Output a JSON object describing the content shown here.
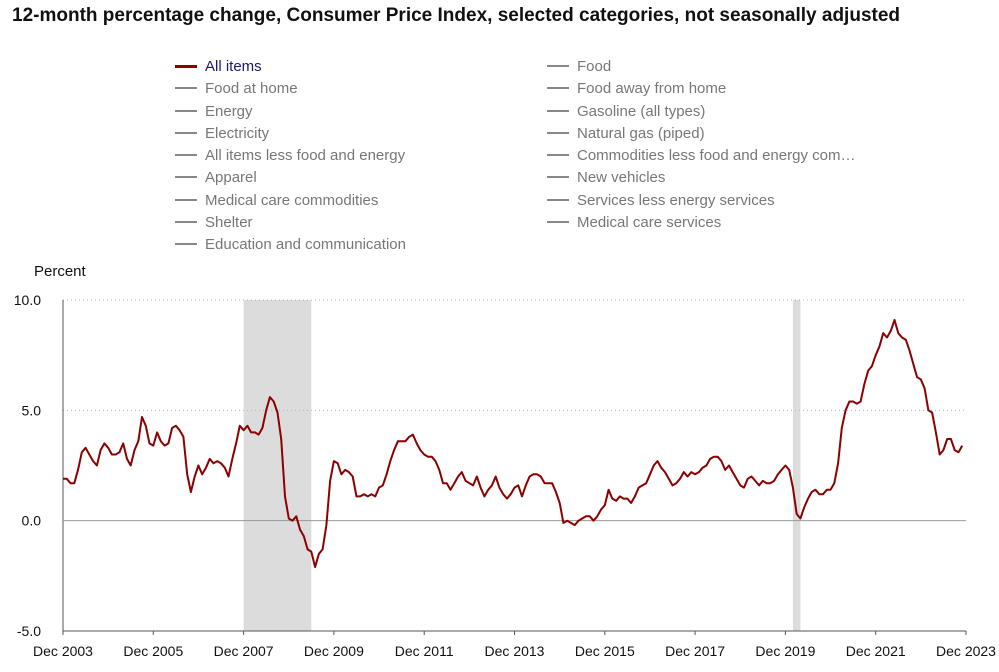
{
  "title": "12-month percentage change, Consumer Price Index, selected categories, not seasonally adjusted",
  "legend": {
    "left": [
      "All items",
      "Food at home",
      "Energy",
      "Electricity",
      "All items less food and energy",
      "Apparel",
      "Medical care commodities",
      "Shelter",
      "Education and communication"
    ],
    "right": [
      "Food",
      "Food away from home",
      "Gasoline (all types)",
      "Natural gas (piped)",
      "Commodities less food and energy com…",
      "New vehicles",
      "Services less energy services",
      "Medical care services"
    ]
  },
  "colors": {
    "all_items": "#8b0000",
    "inactive": "#888888",
    "recession": "#dcdcdc",
    "grid": "#b0b0c8"
  },
  "chart_data": {
    "type": "line",
    "title": "12-month percentage change, Consumer Price Index, selected categories, not seasonally adjusted",
    "ylabel": "Percent",
    "xlabel": "",
    "ylim": [
      -5.0,
      10.0
    ],
    "yticks": [
      "10.0",
      "5.0",
      "0.0",
      "-5.0"
    ],
    "ytick_values": [
      10,
      5,
      0,
      -5
    ],
    "xticks": [
      "Dec 2003",
      "Dec 2005",
      "Dec 2007",
      "Dec 2009",
      "Dec 2011",
      "Dec 2013",
      "Dec 2015",
      "Dec 2017",
      "Dec 2019",
      "Dec 2021",
      "Dec 2023"
    ],
    "xrange": [
      "2003-12",
      "2023-12"
    ],
    "grid": "horizontal dotted at 5.0 and 10.0",
    "recessions": [
      [
        "2007-12",
        "2009-06"
      ],
      [
        "2020-02",
        "2020-04"
      ]
    ],
    "series": [
      {
        "name": "All items",
        "start": "2003-12",
        "values": [
          1.9,
          1.9,
          1.7,
          1.7,
          2.3,
          3.1,
          3.3,
          3.0,
          2.7,
          2.5,
          3.2,
          3.5,
          3.3,
          3.0,
          3.0,
          3.1,
          3.5,
          2.8,
          2.5,
          3.2,
          3.6,
          4.7,
          4.3,
          3.5,
          3.4,
          4.0,
          3.6,
          3.4,
          3.5,
          4.2,
          4.3,
          4.1,
          3.8,
          2.1,
          1.3,
          2.0,
          2.5,
          2.1,
          2.4,
          2.8,
          2.6,
          2.7,
          2.6,
          2.4,
          2.0,
          2.8,
          3.5,
          4.3,
          4.1,
          4.3,
          4.0,
          4.0,
          3.9,
          4.2,
          5.0,
          5.6,
          5.4,
          4.9,
          3.7,
          1.1,
          0.1,
          0.0,
          0.2,
          -0.4,
          -0.7,
          -1.3,
          -1.4,
          -2.1,
          -1.5,
          -1.3,
          -0.2,
          1.8,
          2.7,
          2.6,
          2.1,
          2.3,
          2.2,
          2.0,
          1.1,
          1.1,
          1.2,
          1.1,
          1.2,
          1.1,
          1.5,
          1.6,
          2.1,
          2.7,
          3.2,
          3.6,
          3.6,
          3.6,
          3.8,
          3.9,
          3.5,
          3.2,
          3.0,
          2.9,
          2.9,
          2.7,
          2.3,
          1.7,
          1.7,
          1.4,
          1.7,
          2.0,
          2.2,
          1.8,
          1.7,
          1.6,
          2.0,
          1.5,
          1.1,
          1.4,
          1.6,
          2.0,
          1.5,
          1.2,
          1.0,
          1.2,
          1.5,
          1.6,
          1.1,
          1.6,
          2.0,
          2.1,
          2.1,
          2.0,
          1.7,
          1.7,
          1.7,
          1.3,
          0.8,
          -0.1,
          0.0,
          -0.1,
          -0.2,
          0.0,
          0.1,
          0.2,
          0.2,
          0.0,
          0.2,
          0.5,
          0.7,
          1.4,
          1.0,
          0.9,
          1.1,
          1.0,
          1.0,
          0.8,
          1.1,
          1.5,
          1.6,
          1.7,
          2.1,
          2.5,
          2.7,
          2.4,
          2.2,
          1.9,
          1.6,
          1.7,
          1.9,
          2.2,
          2.0,
          2.2,
          2.1,
          2.2,
          2.4,
          2.5,
          2.8,
          2.9,
          2.9,
          2.7,
          2.3,
          2.5,
          2.2,
          1.9,
          1.6,
          1.5,
          1.9,
          2.0,
          1.8,
          1.6,
          1.8,
          1.7,
          1.7,
          1.8,
          2.1,
          2.3,
          2.5,
          2.3,
          1.5,
          0.3,
          0.1,
          0.6,
          1.0,
          1.3,
          1.4,
          1.2,
          1.2,
          1.4,
          1.4,
          1.7,
          2.6,
          4.2,
          5.0,
          5.4,
          5.4,
          5.3,
          5.4,
          6.2,
          6.8,
          7.0,
          7.5,
          7.9,
          8.5,
          8.3,
          8.6,
          9.1,
          8.5,
          8.3,
          8.2,
          7.7,
          7.1,
          6.5,
          6.4,
          6.0,
          5.0,
          4.9,
          4.0,
          3.0,
          3.2,
          3.7,
          3.7,
          3.2,
          3.1,
          3.4
        ]
      }
    ]
  }
}
